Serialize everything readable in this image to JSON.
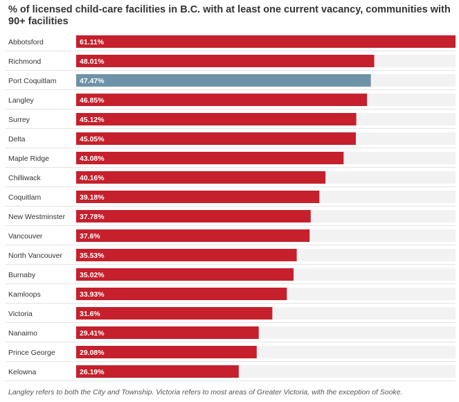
{
  "chart_data": {
    "type": "bar",
    "orientation": "horizontal",
    "title": "% of licensed child-care facilities in B.C. with at least one current vacancy, communities with 90+ facilities",
    "categories": [
      "Abbotsford",
      "Richmond",
      "Port Coquitlam",
      "Langley",
      "Surrey",
      "Delta",
      "Maple Ridge",
      "Chilliwack",
      "Coquitlam",
      "New Westminster",
      "Vancouver",
      "North Vancouver",
      "Burnaby",
      "Kamloops",
      "Victoria",
      "Nanaimo",
      "Prince George",
      "Kelowna"
    ],
    "values": [
      61.11,
      48.01,
      47.47,
      46.85,
      45.12,
      45.05,
      43.08,
      40.16,
      39.18,
      37.78,
      37.6,
      35.53,
      35.02,
      33.93,
      31.6,
      29.41,
      29.08,
      26.19
    ],
    "value_labels": [
      "61.11%",
      "48.01%",
      "47.47%",
      "46.85%",
      "45.12%",
      "45.05%",
      "43.08%",
      "40.16%",
      "39.18%",
      "37.78%",
      "37.6%",
      "35.53%",
      "35.02%",
      "33.93%",
      "31.6%",
      "29.41%",
      "29.08%",
      "26.19%"
    ],
    "highlight_category": "Port Coquitlam",
    "xlim": [
      0,
      61.11
    ],
    "grid": false,
    "legend": "none",
    "colors": {
      "bar": "#c5202c",
      "highlight": "#6e93a8",
      "track": "#f2f2f2",
      "label": "#333333",
      "value_text": "#ffffff"
    },
    "footnote": "Langley refers to both the City and Township. Victoria refers to most areas of Greater Victoria, with the exception of Sooke."
  }
}
